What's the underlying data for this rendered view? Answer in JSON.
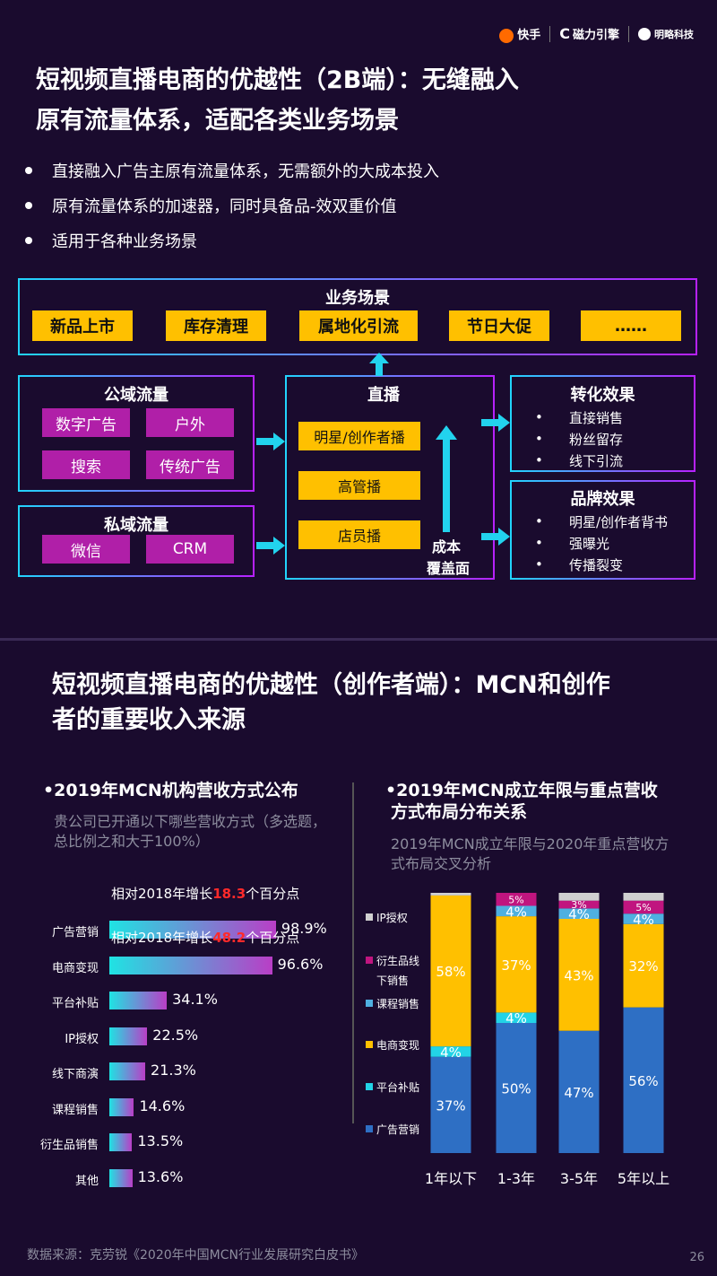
{
  "logos": [
    "快手",
    "磁力引擎",
    "明略科技"
  ],
  "section1": {
    "title_line1": "短视频直播电商的优越性（2B端）：无缝融入",
    "title_line2": "原有流量体系，适配各类业务场景",
    "bullets": [
      "直接融入广告主原有流量体系，无需额外的大成本投入",
      "原有流量体系的加速器，同时具备品-效双重价值",
      "适用于各种业务场景"
    ],
    "diagram": {
      "scenes_title": "业务场景",
      "scenes": [
        "新品上市",
        "库存清理",
        "属地化引流",
        "节日大促",
        "……"
      ],
      "public_title": "公域流量",
      "public_items": [
        "数字广告",
        "户外",
        "搜索",
        "传统广告"
      ],
      "private_title": "私域流量",
      "private_items": [
        "微信",
        "CRM"
      ],
      "live_title": "直播",
      "live_items": [
        "明星/创作者播",
        "高管播",
        "店员播"
      ],
      "cost_label_1": "成本",
      "cost_label_2": "覆盖面",
      "conv_title": "转化效果",
      "conv_items": [
        "直接销售",
        "粉丝留存",
        "线下引流"
      ],
      "brand_title": "品牌效果",
      "brand_items": [
        "明星/创作者背书",
        "强曝光",
        "传播裂变"
      ]
    }
  },
  "section2": {
    "title_line1": "短视频直播电商的优越性（创作者端）：MCN和创作",
    "title_line2": "者的重要收入来源",
    "left_title": "•2019年MCN机构营收方式公布",
    "left_note_1": "贵公司已开通以下哪些营收方式（多选题，",
    "left_note_2": "总比例之和大于100%）",
    "ann1_pre": "相对2018年增长",
    "ann1_num": "18.3",
    "ann1_post": "个百分点",
    "ann2_pre": "相对2018年增长",
    "ann2_num": "48.2",
    "ann2_post": "个百分点",
    "right_title_1": "•2019年MCN成立年限与重点营收",
    "right_title_2": "方式布局分布关系",
    "right_note_1": "2019年MCN成立年限与2020年重点营收方",
    "right_note_2": "式布局交叉分析"
  },
  "colors": {
    "bg": "#1a0b2e",
    "yellow": "#ffc000",
    "magenta": "#b01fa8",
    "cyan": "#22d3ee",
    "ad": "#2e6fc4",
    "platform": "#22d3e6",
    "ecommerce": "#ffc000",
    "course": "#4fb0e0",
    "derivative": "#c0157f",
    "ip": "#d0d0d0"
  },
  "chart_data": [
    {
      "type": "bar",
      "orientation": "horizontal",
      "categories": [
        "广告营销",
        "电商变现",
        "平台补贴",
        "IP授权",
        "线下商演",
        "课程销售",
        "衍生品销售",
        "其他"
      ],
      "values": [
        98.9,
        96.6,
        34.1,
        22.5,
        21.3,
        14.6,
        13.5,
        13.6
      ],
      "value_labels": [
        "98.9%",
        "96.6%",
        "34.1%",
        "22.5%",
        "21.3%",
        "14.6%",
        "13.5%",
        "13.6%"
      ],
      "xlim": [
        0,
        100
      ]
    },
    {
      "type": "bar",
      "stacked": true,
      "categories": [
        "1年以下",
        "1-3年",
        "3-5年",
        "5年以上"
      ],
      "series": [
        {
          "name": "广告营销",
          "values": [
            37,
            50,
            47,
            56
          ],
          "labels": [
            "37%",
            "50%",
            "47%",
            "56%"
          ]
        },
        {
          "name": "平台补贴",
          "values": [
            4,
            4,
            0,
            0
          ],
          "labels": [
            "4%",
            "4%",
            "",
            ""
          ]
        },
        {
          "name": "电商变现",
          "values": [
            58,
            37,
            43,
            32
          ],
          "labels": [
            "58%",
            "37%",
            "43%",
            "32%"
          ]
        },
        {
          "name": "课程销售",
          "values": [
            0,
            4,
            4,
            4
          ],
          "labels": [
            "",
            "4%",
            "4%",
            "4%"
          ]
        },
        {
          "name": "衍生品线下销售",
          "values": [
            0,
            5,
            3,
            5
          ],
          "labels": [
            "",
            "5%",
            "3%",
            "5%"
          ]
        },
        {
          "name": "IP授权",
          "values": [
            1,
            0,
            3,
            3
          ],
          "labels": [
            "",
            "",
            "",
            ""
          ]
        }
      ],
      "legend": [
        "IP授权",
        "衍生品线",
        "下销售",
        "课程销售",
        "电商变现",
        "平台补贴",
        "广告营销"
      ],
      "ylim": [
        0,
        100
      ],
      "legend_position": "left"
    }
  ],
  "footer": "数据来源：克劳锐《2020年中国MCN行业发展研究白皮书》",
  "page_number": "26"
}
